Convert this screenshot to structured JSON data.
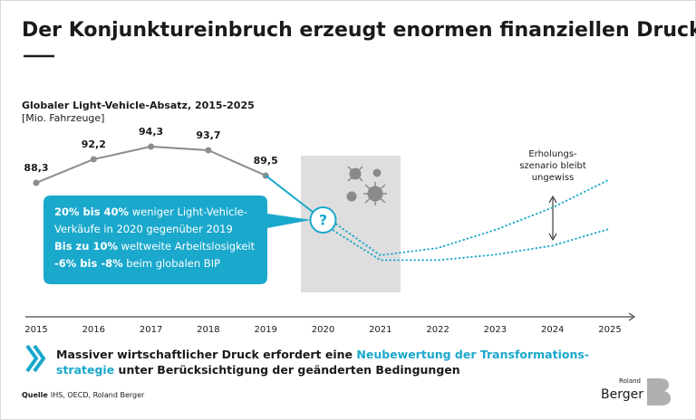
{
  "title": "Der Konjunktureinbruch erzeugt enormen finanziellen Druck",
  "chart_data": {
    "type": "line",
    "subtitle": "Globaler Light-Vehicle-Absatz, 2015-2025",
    "unit": "[Mio. Fahrzeuge]",
    "categories": [
      "2015",
      "2016",
      "2017",
      "2018",
      "2019",
      "2020",
      "2021",
      "2022",
      "2023",
      "2024",
      "2025"
    ],
    "series": [
      {
        "color": "#8c8c8c",
        "style": "solid",
        "values": [
          88.3,
          92.2,
          94.3,
          93.7,
          89.5,
          null,
          null,
          null,
          null,
          null,
          null
        ],
        "value_labels": [
          "88,3",
          "92,2",
          "94,3",
          "93,7",
          "89,5",
          null,
          null,
          null,
          null,
          null,
          null
        ]
      },
      {
        "color": "#1aa8cc",
        "style": "dotted",
        "values": [
          null,
          null,
          null,
          null,
          null,
          83.0,
          76.3,
          77.5,
          80.5,
          84.2,
          88.9
        ]
      },
      {
        "color": "#1aa8cc",
        "style": "dotted",
        "values": [
          null,
          null,
          null,
          null,
          null,
          81.5,
          75.5,
          75.5,
          76.4,
          77.9,
          80.7
        ]
      }
    ],
    "ylim": [
      74,
      96
    ],
    "annotation": [
      "Erholungs-",
      "szenario bleibt",
      "ungewiss"
    ],
    "callout": {
      "symbol": "?",
      "lines": [
        [
          {
            "text": "20% bis 40%",
            "bold": true
          },
          {
            "text": " weniger Light-Vehicle-",
            "bold": false
          }
        ],
        [
          {
            "text": "Verkäufe in 2020 gegenüber 2019",
            "bold": false
          }
        ],
        [
          {
            "text": "Bis zu 10%",
            "bold": true
          },
          {
            "text": " weltweite Arbeitslosigkeit",
            "bold": false
          }
        ],
        [
          {
            "text": "-6% bis -8%",
            "bold": true
          },
          {
            "text": " beim globalen BIP",
            "bold": false
          }
        ]
      ]
    }
  },
  "message": {
    "lines": [
      [
        {
          "text": "Massiver wirtschaftlicher Druck erfordert eine ",
          "highlight": false
        },
        {
          "text": "Neubewertung der Transformations-",
          "highlight": true
        }
      ],
      [
        {
          "text": "strategie",
          "highlight": true
        },
        {
          "text": " unter Berücksichtigung der geänderten Bedingungen",
          "highlight": false
        }
      ]
    ]
  },
  "source": {
    "label": "Quelle",
    "text": "IHS, OECD, Roland Berger"
  },
  "logo": {
    "small": "Roland",
    "big": "Berger"
  }
}
